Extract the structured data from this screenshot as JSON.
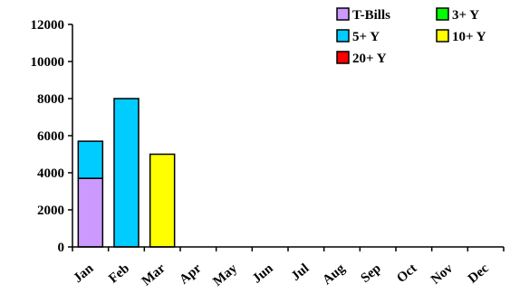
{
  "chart_data": {
    "type": "bar",
    "stacked": true,
    "categories": [
      "Jan",
      "Feb",
      "Mar",
      "Apr",
      "May",
      "Jun",
      "Jul",
      "Aug",
      "Sep",
      "Oct",
      "Nov",
      "Dec"
    ],
    "series": [
      {
        "name": "T-Bills",
        "color": "#cc99ff",
        "values": [
          3700,
          0,
          0,
          0,
          0,
          0,
          0,
          0,
          0,
          0,
          0,
          0
        ]
      },
      {
        "name": "3+ Y",
        "color": "#00ff00",
        "values": [
          0,
          0,
          0,
          0,
          0,
          0,
          0,
          0,
          0,
          0,
          0,
          0
        ]
      },
      {
        "name": "5+ Y",
        "color": "#00ccff",
        "values": [
          2000,
          8000,
          0,
          0,
          0,
          0,
          0,
          0,
          0,
          0,
          0,
          0
        ]
      },
      {
        "name": "10+ Y",
        "color": "#ffff00",
        "values": [
          0,
          0,
          5000,
          0,
          0,
          0,
          0,
          0,
          0,
          0,
          0,
          0
        ]
      },
      {
        "name": "20+ Y",
        "color": "#ff0000",
        "values": [
          0,
          0,
          0,
          0,
          0,
          0,
          0,
          0,
          0,
          0,
          0,
          0
        ]
      }
    ],
    "yticks": [
      0,
      2000,
      4000,
      6000,
      8000,
      10000,
      12000
    ],
    "ylim": [
      0,
      12000
    ],
    "grid": false,
    "legend_position": "top-right",
    "title": "",
    "xlabel": "",
    "ylabel": ""
  }
}
